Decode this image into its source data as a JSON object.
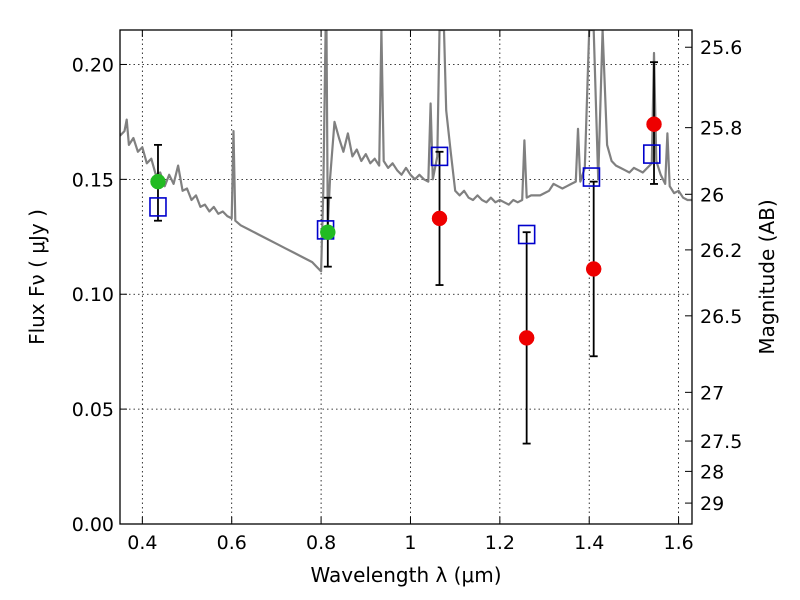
{
  "chart_data": {
    "type": "scatter",
    "title": "",
    "xlabel": "Wavelength  λ (μm)",
    "ylabel": "Flux  Fν  ( μJy )",
    "y2label": "Magnitude (AB)",
    "xlim": [
      0.35,
      1.63
    ],
    "ylim": [
      0.0,
      0.215
    ],
    "grid": true,
    "x_ticks": [
      0.4,
      0.6,
      0.8,
      1.0,
      1.2,
      1.4,
      1.6
    ],
    "x_tick_labels": [
      "0.4",
      "0.6",
      "0.8",
      "1",
      "1.2",
      "1.4",
      "1.6"
    ],
    "y_ticks": [
      0.0,
      0.05,
      0.1,
      0.15,
      0.2
    ],
    "y_tick_labels": [
      "0.00",
      "0.05",
      "0.10",
      "0.15",
      "0.20"
    ],
    "y2_ticks": [
      {
        "label": "25.6",
        "flux": 0.2075
      },
      {
        "label": "25.8",
        "flux": 0.1725
      },
      {
        "label": "26",
        "flux": 0.1435
      },
      {
        "label": "26.2",
        "flux": 0.1193
      },
      {
        "label": "26.5",
        "flux": 0.0906
      },
      {
        "label": "27",
        "flux": 0.0573
      },
      {
        "label": "27.5",
        "flux": 0.0361
      },
      {
        "label": "28",
        "flux": 0.0229
      },
      {
        "label": "29",
        "flux": 0.0091
      }
    ],
    "series": [
      {
        "name": "",
        "kind": "line",
        "color": "#808080",
        "points": [
          [
            0.35,
            0.169
          ],
          [
            0.36,
            0.171
          ],
          [
            0.365,
            0.176
          ],
          [
            0.37,
            0.165
          ],
          [
            0.38,
            0.168
          ],
          [
            0.39,
            0.162
          ],
          [
            0.4,
            0.164
          ],
          [
            0.41,
            0.157
          ],
          [
            0.42,
            0.159
          ],
          [
            0.43,
            0.152
          ],
          [
            0.44,
            0.153
          ],
          [
            0.45,
            0.147
          ],
          [
            0.46,
            0.152
          ],
          [
            0.47,
            0.148
          ],
          [
            0.48,
            0.156
          ],
          [
            0.49,
            0.145
          ],
          [
            0.5,
            0.146
          ],
          [
            0.51,
            0.141
          ],
          [
            0.52,
            0.143
          ],
          [
            0.53,
            0.138
          ],
          [
            0.54,
            0.139
          ],
          [
            0.55,
            0.136
          ],
          [
            0.56,
            0.138
          ],
          [
            0.57,
            0.135
          ],
          [
            0.58,
            0.136
          ],
          [
            0.59,
            0.134
          ],
          [
            0.6,
            0.133
          ],
          [
            0.604,
            0.171
          ],
          [
            0.608,
            0.132
          ],
          [
            0.62,
            0.13
          ],
          [
            0.64,
            0.128
          ],
          [
            0.66,
            0.126
          ],
          [
            0.68,
            0.124
          ],
          [
            0.7,
            0.122
          ],
          [
            0.72,
            0.12
          ],
          [
            0.74,
            0.118
          ],
          [
            0.76,
            0.116
          ],
          [
            0.78,
            0.114
          ],
          [
            0.79,
            0.112
          ],
          [
            0.8,
            0.11
          ],
          [
            0.805,
            0.145
          ],
          [
            0.81,
            0.215
          ],
          [
            0.812,
            0.215
          ],
          [
            0.815,
            0.13
          ],
          [
            0.82,
            0.15
          ],
          [
            0.83,
            0.175
          ],
          [
            0.84,
            0.168
          ],
          [
            0.85,
            0.162
          ],
          [
            0.86,
            0.17
          ],
          [
            0.87,
            0.16
          ],
          [
            0.88,
            0.163
          ],
          [
            0.89,
            0.158
          ],
          [
            0.9,
            0.161
          ],
          [
            0.91,
            0.157
          ],
          [
            0.92,
            0.159
          ],
          [
            0.93,
            0.156
          ],
          [
            0.935,
            0.215
          ],
          [
            0.94,
            0.158
          ],
          [
            0.95,
            0.155
          ],
          [
            0.96,
            0.157
          ],
          [
            0.97,
            0.154
          ],
          [
            0.98,
            0.152
          ],
          [
            0.99,
            0.155
          ],
          [
            1.0,
            0.152
          ],
          [
            1.01,
            0.15
          ],
          [
            1.02,
            0.152
          ],
          [
            1.03,
            0.15
          ],
          [
            1.04,
            0.149
          ],
          [
            1.045,
            0.183
          ],
          [
            1.05,
            0.15
          ],
          [
            1.06,
            0.16
          ],
          [
            1.065,
            0.215
          ],
          [
            1.075,
            0.215
          ],
          [
            1.08,
            0.18
          ],
          [
            1.09,
            0.162
          ],
          [
            1.1,
            0.145
          ],
          [
            1.11,
            0.143
          ],
          [
            1.12,
            0.145
          ],
          [
            1.13,
            0.142
          ],
          [
            1.14,
            0.141
          ],
          [
            1.15,
            0.143
          ],
          [
            1.16,
            0.141
          ],
          [
            1.17,
            0.14
          ],
          [
            1.18,
            0.142
          ],
          [
            1.19,
            0.14
          ],
          [
            1.2,
            0.141
          ],
          [
            1.21,
            0.14
          ],
          [
            1.22,
            0.139
          ],
          [
            1.23,
            0.141
          ],
          [
            1.24,
            0.14
          ],
          [
            1.25,
            0.141
          ],
          [
            1.255,
            0.167
          ],
          [
            1.26,
            0.142
          ],
          [
            1.27,
            0.143
          ],
          [
            1.28,
            0.143
          ],
          [
            1.29,
            0.143
          ],
          [
            1.3,
            0.144
          ],
          [
            1.31,
            0.145
          ],
          [
            1.32,
            0.148
          ],
          [
            1.33,
            0.147
          ],
          [
            1.34,
            0.146
          ],
          [
            1.35,
            0.147
          ],
          [
            1.36,
            0.148
          ],
          [
            1.37,
            0.149
          ],
          [
            1.375,
            0.172
          ],
          [
            1.38,
            0.149
          ],
          [
            1.39,
            0.155
          ],
          [
            1.4,
            0.215
          ],
          [
            1.41,
            0.215
          ],
          [
            1.42,
            0.15
          ],
          [
            1.43,
            0.215
          ],
          [
            1.44,
            0.165
          ],
          [
            1.45,
            0.158
          ],
          [
            1.46,
            0.156
          ],
          [
            1.47,
            0.155
          ],
          [
            1.48,
            0.154
          ],
          [
            1.49,
            0.153
          ],
          [
            1.5,
            0.155
          ],
          [
            1.51,
            0.154
          ],
          [
            1.52,
            0.153
          ],
          [
            1.53,
            0.155
          ],
          [
            1.54,
            0.157
          ],
          [
            1.545,
            0.205
          ],
          [
            1.55,
            0.158
          ],
          [
            1.56,
            0.152
          ],
          [
            1.57,
            0.148
          ],
          [
            1.575,
            0.17
          ],
          [
            1.58,
            0.147
          ],
          [
            1.59,
            0.144
          ],
          [
            1.6,
            0.145
          ],
          [
            1.61,
            0.142
          ],
          [
            1.62,
            0.141
          ],
          [
            1.63,
            0.141
          ]
        ]
      },
      {
        "name": "",
        "kind": "squares",
        "color": "#0000cc",
        "points": [
          [
            0.435,
            0.138
          ],
          [
            0.81,
            0.128
          ],
          [
            1.065,
            0.16
          ],
          [
            1.26,
            0.126
          ],
          [
            1.405,
            0.151
          ],
          [
            1.54,
            0.161
          ]
        ]
      },
      {
        "name": "",
        "kind": "circles",
        "color": "#22bb22",
        "points": [
          [
            0.435,
            0.149
          ],
          [
            0.815,
            0.127
          ]
        ]
      },
      {
        "name": "",
        "kind": "circles",
        "color": "#ee0000",
        "points": [
          [
            1.065,
            0.133
          ],
          [
            1.26,
            0.081
          ],
          [
            1.41,
            0.111
          ],
          [
            1.545,
            0.174
          ]
        ]
      },
      {
        "name": "",
        "kind": "errorbars",
        "color": "#000000",
        "bars": [
          {
            "x": 0.435,
            "low": 0.132,
            "high": 0.165
          },
          {
            "x": 0.815,
            "low": 0.112,
            "high": 0.142
          },
          {
            "x": 1.065,
            "low": 0.104,
            "high": 0.162
          },
          {
            "x": 1.26,
            "low": 0.035,
            "high": 0.127
          },
          {
            "x": 1.41,
            "low": 0.073,
            "high": 0.149
          },
          {
            "x": 1.545,
            "low": 0.148,
            "high": 0.201
          }
        ]
      }
    ]
  }
}
